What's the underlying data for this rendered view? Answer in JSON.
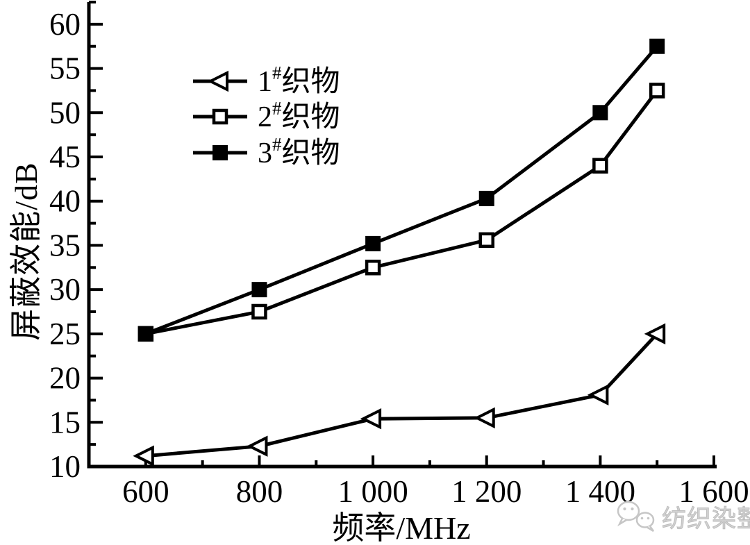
{
  "chart_data": {
    "type": "line",
    "title": "",
    "xlabel": "频率/MHz",
    "ylabel": "屏蔽效能/dB",
    "xlim": [
      500,
      1600
    ],
    "ylim": [
      10,
      62.5
    ],
    "grid": false,
    "legend_position": "upper-left-inside",
    "x_major_ticks": [
      600,
      800,
      1000,
      1200,
      1400,
      1600
    ],
    "x_major_tick_labels": [
      "600",
      "800",
      "1 000",
      "1 200",
      "1 400",
      "1 600"
    ],
    "x_minor_ticks": [
      700,
      900,
      1100,
      1300,
      1500
    ],
    "y_major_ticks": [
      10,
      15,
      20,
      25,
      30,
      35,
      40,
      45,
      50,
      55,
      60
    ],
    "y_major_tick_labels": [
      "10",
      "15",
      "20",
      "25",
      "30",
      "35",
      "40",
      "45",
      "50",
      "55",
      "60"
    ],
    "y_minor_ticks": [
      12.5,
      17.5,
      22.5,
      27.5,
      32.5,
      37.5,
      42.5,
      47.5,
      52.5,
      57.5,
      62.5
    ],
    "axis_color": "#000000",
    "x": [
      600,
      800,
      1000,
      1200,
      1400,
      1500
    ],
    "series": [
      {
        "name": "1#织物",
        "label_parts": {
          "num": "1",
          "sup": "#",
          "text": "织物"
        },
        "marker": "triangle-left-open",
        "color": "#000000",
        "values": [
          11.2,
          12.3,
          15.4,
          15.5,
          18.1,
          25.0
        ]
      },
      {
        "name": "2#织物",
        "label_parts": {
          "num": "2",
          "sup": "#",
          "text": "织物"
        },
        "marker": "square-open",
        "color": "#000000",
        "values": [
          25.0,
          27.5,
          32.5,
          35.6,
          44.0,
          52.5
        ]
      },
      {
        "name": "3#织物",
        "label_parts": {
          "num": "3",
          "sup": "#",
          "text": "织物"
        },
        "marker": "square-filled",
        "color": "#000000",
        "values": [
          25.0,
          30.0,
          35.2,
          40.3,
          50.0,
          57.5
        ]
      }
    ]
  },
  "watermark": {
    "text": "纺织染整",
    "icon": "wechat-icon",
    "color": "#c9c9c9"
  }
}
